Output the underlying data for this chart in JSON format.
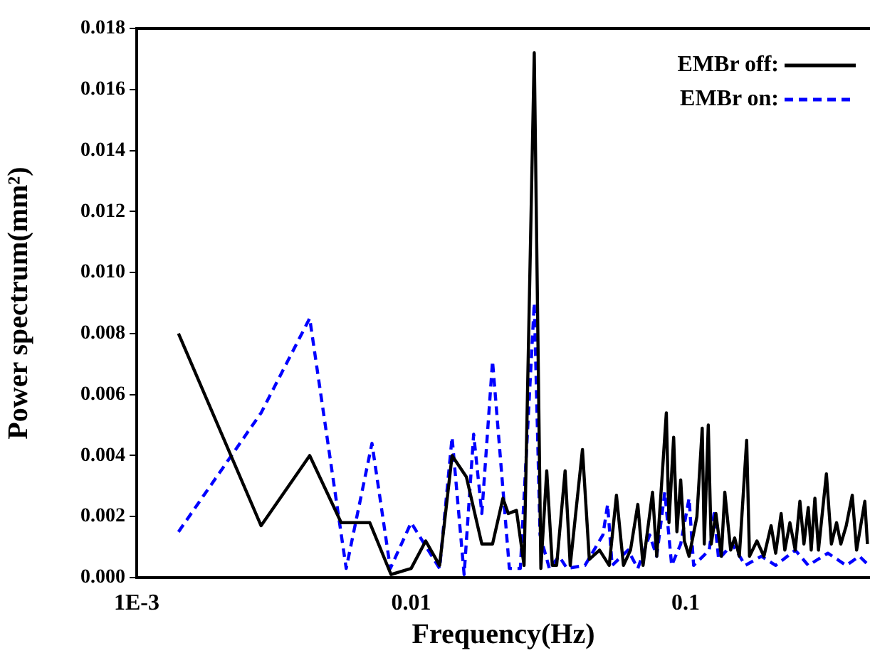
{
  "chart_data": {
    "type": "line",
    "xlabel": "Frequency(Hz)",
    "ylabel": "Power spectrum(mm²)",
    "log": "x",
    "grid": false,
    "legend": "top right",
    "marker": "none",
    "xlim": [
      0.001,
      0.47
    ],
    "xticks": [
      {
        "value": 0.001,
        "label": "1E-3"
      },
      0.01,
      0.1
    ],
    "ylim": [
      0,
      0.018
    ],
    "yticks": [
      {
        "value": 0,
        "label": "0.000"
      },
      {
        "value": 0.002,
        "label": "0.002"
      },
      {
        "value": 0.004,
        "label": "0.004"
      },
      {
        "value": 0.006,
        "label": "0.006"
      },
      {
        "value": 0.008,
        "label": "0.008"
      },
      {
        "value": 0.01,
        "label": "0.010"
      },
      {
        "value": 0.012,
        "label": "0.012"
      },
      {
        "value": 0.014,
        "label": "0.014"
      },
      {
        "value": 0.016,
        "label": "0.016"
      },
      {
        "value": 0.018,
        "label": "0.018"
      }
    ],
    "series": [
      {
        "name": "EMBr off:",
        "color": "#000000",
        "line_style": "solid",
        "x": [
          0.00142,
          0.00284,
          0.00427,
          0.00556,
          0.00707,
          0.00845,
          0.01,
          0.0113,
          0.0127,
          0.0141,
          0.0159,
          0.0181,
          0.0198,
          0.0216,
          0.0226,
          0.0242,
          0.0258,
          0.0281,
          0.0297,
          0.0312,
          0.0327,
          0.0339,
          0.0364,
          0.038,
          0.0421,
          0.0446,
          0.0486,
          0.0527,
          0.056,
          0.0594,
          0.063,
          0.067,
          0.07,
          0.0758,
          0.0785,
          0.081,
          0.0851,
          0.087,
          0.0905,
          0.093,
          0.096,
          0.099,
          0.103,
          0.11,
          0.115,
          0.117,
          0.121,
          0.124,
          0.129,
          0.135,
          0.139,
          0.146,
          0.151,
          0.157,
          0.167,
          0.171,
          0.182,
          0.193,
          0.205,
          0.213,
          0.223,
          0.23,
          0.24,
          0.251,
          0.261,
          0.27,
          0.28,
          0.287,
          0.296,
          0.305,
          0.326,
          0.34,
          0.355,
          0.368,
          0.385,
          0.405,
          0.42,
          0.45,
          0.46
        ],
        "values": [
          0.008,
          0.0017,
          0.004,
          0.0018,
          0.0018,
          0.0001,
          0.0003,
          0.0012,
          0.0004,
          0.004,
          0.0033,
          0.0011,
          0.0011,
          0.0026,
          0.0021,
          0.0022,
          0.0004,
          0.0172,
          0.0003,
          0.0035,
          0.0004,
          0.0004,
          0.0035,
          0.0004,
          0.0042,
          0.0006,
          0.0009,
          0.0004,
          0.0027,
          0.0004,
          0.0009,
          0.0024,
          0.0004,
          0.0028,
          0.0007,
          0.0025,
          0.0054,
          0.0018,
          0.0046,
          0.0015,
          0.0032,
          0.0012,
          0.0007,
          0.002,
          0.0049,
          0.0011,
          0.005,
          0.0011,
          0.0021,
          0.0007,
          0.0028,
          0.0009,
          0.0013,
          0.0007,
          0.0045,
          0.0007,
          0.0012,
          0.0007,
          0.0017,
          0.0008,
          0.0021,
          0.0009,
          0.0018,
          0.0009,
          0.0025,
          0.0011,
          0.0023,
          0.0009,
          0.0026,
          0.0009,
          0.0034,
          0.0011,
          0.0018,
          0.0011,
          0.0017,
          0.0027,
          0.0009,
          0.0025,
          0.0011
        ]
      },
      {
        "name": "EMBr on:",
        "color": "#0000ff",
        "line_style": "dashed",
        "x": [
          0.00142,
          0.00284,
          0.00427,
          0.0058,
          0.0072,
          0.0084,
          0.01,
          0.0127,
          0.0141,
          0.0156,
          0.0169,
          0.0181,
          0.0198,
          0.0228,
          0.025,
          0.0281,
          0.0295,
          0.0319,
          0.0346,
          0.037,
          0.043,
          0.05,
          0.052,
          0.054,
          0.0617,
          0.067,
          0.074,
          0.0785,
          0.084,
          0.089,
          0.096,
          0.103,
          0.107,
          0.122,
          0.127,
          0.132,
          0.148,
          0.165,
          0.189,
          0.213,
          0.251,
          0.28,
          0.33,
          0.385,
          0.43,
          0.465
        ],
        "values": [
          0.0015,
          0.0054,
          0.0085,
          0.0003,
          0.0044,
          0.0003,
          0.0018,
          0.0003,
          0.0046,
          0.0001,
          0.0047,
          0.0021,
          0.0071,
          0.0003,
          0.0003,
          0.009,
          0.0014,
          0.0003,
          0.0007,
          0.0003,
          0.0004,
          0.0014,
          0.0024,
          0.0004,
          0.0009,
          0.0003,
          0.0014,
          0.0007,
          0.0028,
          0.0004,
          0.0011,
          0.0026,
          0.0004,
          0.0009,
          0.0021,
          0.0006,
          0.0011,
          0.0004,
          0.0007,
          0.0004,
          0.0009,
          0.0004,
          0.0008,
          0.0004,
          0.0007,
          0.0004
        ]
      }
    ]
  }
}
